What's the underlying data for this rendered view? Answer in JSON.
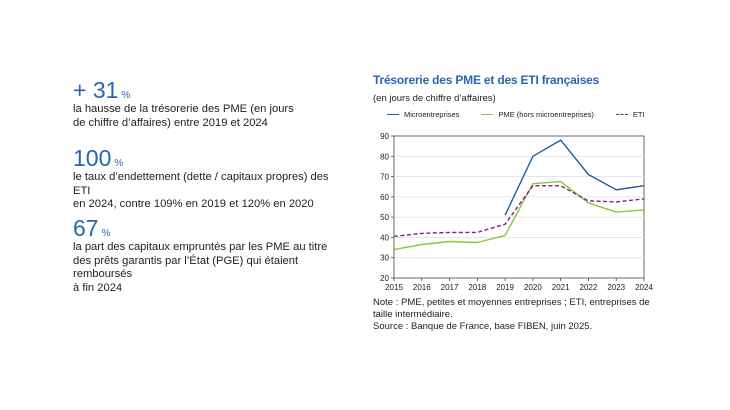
{
  "stats": [
    {
      "value": "+ 31",
      "unit": "%",
      "text_line1": "la hausse de la trésorerie des PME (en jours",
      "text_line2": "de chiffre d’affaires) entre 2019 et 2024",
      "text_line3": ""
    },
    {
      "value": "100",
      "unit": "%",
      "text_line1": "le taux d’endettement (dette / capitaux propres) des ETI",
      "text_line2": "en 2024, contre 109% en 2019 et 120% en 2020",
      "text_line3": ""
    },
    {
      "value": "67",
      "unit": "%",
      "text_line1": "la part des capitaux empruntés par les PME au titre",
      "text_line2": "des prêts garantis par l’État (PGE) qui étaient remboursés",
      "text_line3": "à fin 2024"
    }
  ],
  "chart_data": {
    "type": "line",
    "title": "Trésorerie des PME et des ETI françaises",
    "subtitle": "(en jours de chiffre d’affaires)",
    "x": [
      2015,
      2016,
      2017,
      2018,
      2019,
      2020,
      2021,
      2022,
      2023,
      2024
    ],
    "ylim": [
      20,
      90
    ],
    "yticks": [
      20,
      30,
      40,
      50,
      60,
      70,
      80,
      90
    ],
    "series": [
      {
        "name": "Microentreprises",
        "color": "#1f5f9e",
        "style": "solid",
        "values": [
          null,
          null,
          null,
          null,
          51,
          80,
          88,
          71,
          63.5,
          65.5
        ]
      },
      {
        "name": "PME (hors microentreprises)",
        "color": "#8cc63f",
        "style": "solid",
        "values": [
          34,
          36.5,
          38,
          37.5,
          41,
          66.5,
          67.5,
          57,
          52.5,
          53.5
        ]
      },
      {
        "name": "ETI",
        "color": "#8b1a8b",
        "style": "dashed",
        "values": [
          40.5,
          42,
          42.5,
          42.5,
          46.5,
          65.5,
          65.5,
          58,
          57.5,
          59
        ]
      }
    ]
  },
  "note": {
    "line1": "Note : PME, petites et moyennes entreprises ; ETI, entreprises de",
    "line2": "taille intermédiaire.",
    "line3": "Source : Banque de France, base FIBEN, juin 2025."
  }
}
